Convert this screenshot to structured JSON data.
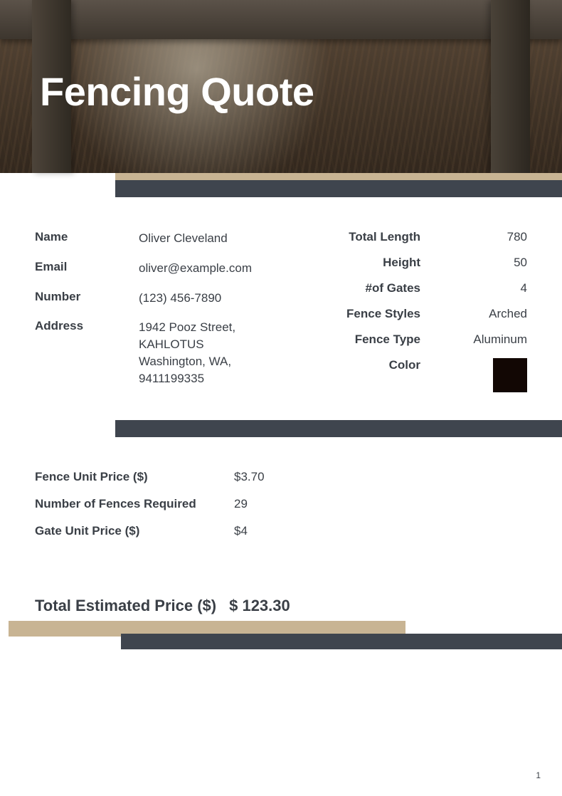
{
  "header": {
    "title": "Fencing Quote"
  },
  "customer": {
    "labels": {
      "name": "Name",
      "email": "Email",
      "number": "Number",
      "address": "Address"
    },
    "name": "Oliver Cleveland",
    "email": "oliver@example.com",
    "number": "(123) 456-7890",
    "address": "1942 Pooz Street, KAHLOTUS Washington, WA, 9411199335"
  },
  "specs": {
    "labels": {
      "total_length": "Total Length",
      "height": "Height",
      "gates": "#of Gates",
      "styles": "Fence Styles",
      "type": "Fence Type",
      "color": "Color"
    },
    "total_length": "780",
    "height": "50",
    "gates": "4",
    "styles": "Arched",
    "type": "Aluminum",
    "color_hex": "#120704"
  },
  "pricing": {
    "labels": {
      "unit_price": "Fence Unit Price ($)",
      "num_fences": "Number of Fences Required",
      "gate_price": "Gate Unit Price ($)",
      "total": "Total Estimated Price ($)"
    },
    "unit_price": "$3.70",
    "num_fences": "29",
    "gate_price": "$4",
    "total": "$ 123.30"
  },
  "colors": {
    "accent_dark": "#3f454e",
    "accent_tan": "#c8b493",
    "text": "#3a3f46",
    "title": "#ffffff"
  },
  "page_number": "1"
}
